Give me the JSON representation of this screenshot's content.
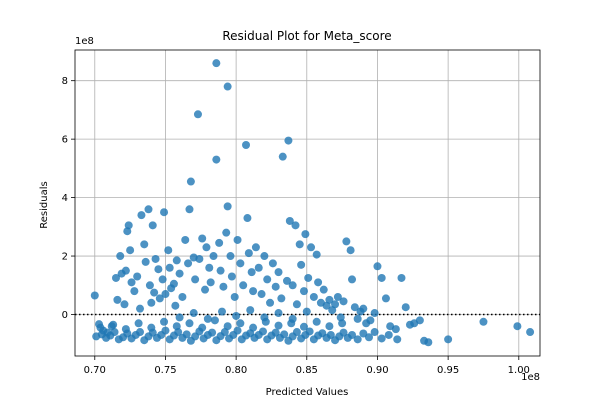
{
  "chart_data": {
    "type": "scatter",
    "title": "Residual Plot for Meta_score",
    "xlabel": "Predicted Values",
    "ylabel": "Residuals",
    "x_offset_label": "1e8",
    "y_offset_label": "1e8",
    "xlim": [
      0.686,
      1.015
    ],
    "ylim": [
      -1.42,
      9.05
    ],
    "x_ticks": [
      0.7,
      0.75,
      0.8,
      0.85,
      0.9,
      0.95,
      1.0
    ],
    "x_tick_labels": [
      "0.70",
      "0.75",
      "0.80",
      "0.85",
      "0.90",
      "0.95",
      "1.00"
    ],
    "y_ticks": [
      0,
      2,
      4,
      6,
      8
    ],
    "y_tick_labels": [
      "0",
      "2",
      "4",
      "6",
      "8"
    ],
    "grid": true,
    "reference_line": {
      "y": 0,
      "style": "dotted",
      "color": "#000000"
    },
    "series": [
      {
        "name": "residuals",
        "color": "#1f77b4",
        "points": [
          [
            0.7,
            0.65
          ],
          [
            0.703,
            -0.33
          ],
          [
            0.706,
            -0.55
          ],
          [
            0.709,
            -0.62
          ],
          [
            0.712,
            -0.4
          ],
          [
            0.715,
            1.25
          ],
          [
            0.716,
            0.5
          ],
          [
            0.718,
            2.0
          ],
          [
            0.719,
            1.4
          ],
          [
            0.721,
            0.35
          ],
          [
            0.722,
            1.5
          ],
          [
            0.723,
            2.85
          ],
          [
            0.724,
            3.05
          ],
          [
            0.725,
            2.2
          ],
          [
            0.726,
            1.1
          ],
          [
            0.728,
            0.8
          ],
          [
            0.73,
            1.3
          ],
          [
            0.732,
            0.2
          ],
          [
            0.733,
            3.4
          ],
          [
            0.735,
            2.4
          ],
          [
            0.736,
            1.8
          ],
          [
            0.738,
            3.6
          ],
          [
            0.739,
            1.0
          ],
          [
            0.74,
            0.4
          ],
          [
            0.741,
            3.05
          ],
          [
            0.742,
            0.75
          ],
          [
            0.743,
            1.9
          ],
          [
            0.745,
            1.55
          ],
          [
            0.746,
            0.55
          ],
          [
            0.748,
            1.2
          ],
          [
            0.749,
            3.5
          ],
          [
            0.75,
            0.7
          ],
          [
            0.752,
            2.2
          ],
          [
            0.753,
            1.6
          ],
          [
            0.754,
            0.9
          ],
          [
            0.756,
            1.05
          ],
          [
            0.757,
            0.3
          ],
          [
            0.758,
            1.85
          ],
          [
            0.76,
            1.4
          ],
          [
            0.762,
            0.6
          ],
          [
            0.764,
            2.55
          ],
          [
            0.766,
            1.75
          ],
          [
            0.767,
            3.6
          ],
          [
            0.768,
            4.55
          ],
          [
            0.77,
            1.95
          ],
          [
            0.771,
            1.2
          ],
          [
            0.773,
            6.85
          ],
          [
            0.774,
            1.9
          ],
          [
            0.776,
            2.6
          ],
          [
            0.778,
            0.85
          ],
          [
            0.779,
            2.3
          ],
          [
            0.781,
            1.6
          ],
          [
            0.782,
            1.1
          ],
          [
            0.784,
            2.0
          ],
          [
            0.786,
            8.6
          ],
          [
            0.786,
            5.3
          ],
          [
            0.788,
            2.45
          ],
          [
            0.789,
            1.5
          ],
          [
            0.791,
            0.95
          ],
          [
            0.793,
            2.8
          ],
          [
            0.794,
            7.8
          ],
          [
            0.794,
            3.7
          ],
          [
            0.796,
            2.0
          ],
          [
            0.797,
            1.3
          ],
          [
            0.799,
            0.6
          ],
          [
            0.801,
            2.55
          ],
          [
            0.803,
            1.75
          ],
          [
            0.805,
            1.0
          ],
          [
            0.807,
            5.8
          ],
          [
            0.808,
            3.3
          ],
          [
            0.809,
            2.1
          ],
          [
            0.811,
            1.45
          ],
          [
            0.812,
            0.8
          ],
          [
            0.814,
            2.3
          ],
          [
            0.816,
            1.6
          ],
          [
            0.818,
            0.7
          ],
          [
            0.82,
            2.0
          ],
          [
            0.822,
            1.2
          ],
          [
            0.824,
            0.4
          ],
          [
            0.826,
            1.75
          ],
          [
            0.828,
            0.95
          ],
          [
            0.83,
            1.45
          ],
          [
            0.832,
            0.55
          ],
          [
            0.833,
            5.4
          ],
          [
            0.836,
            1.15
          ],
          [
            0.837,
            5.95
          ],
          [
            0.838,
            3.2
          ],
          [
            0.84,
            1.0
          ],
          [
            0.842,
            3.05
          ],
          [
            0.843,
            0.35
          ],
          [
            0.845,
            2.4
          ],
          [
            0.846,
            1.7
          ],
          [
            0.848,
            0.8
          ],
          [
            0.849,
            2.75
          ],
          [
            0.851,
            1.25
          ],
          [
            0.853,
            2.3
          ],
          [
            0.855,
            0.6
          ],
          [
            0.857,
            2.05
          ],
          [
            0.858,
            1.1
          ],
          [
            0.86,
            0.4
          ],
          [
            0.862,
            0.85
          ],
          [
            0.864,
            0.3
          ],
          [
            0.866,
            0.5
          ],
          [
            0.868,
            0.15
          ],
          [
            0.87,
            0.35
          ],
          [
            0.872,
            0.6
          ],
          [
            0.874,
            -0.1
          ],
          [
            0.876,
            0.45
          ],
          [
            0.878,
            2.5
          ],
          [
            0.881,
            2.2
          ],
          [
            0.882,
            1.2
          ],
          [
            0.884,
            0.25
          ],
          [
            0.886,
            -0.15
          ],
          [
            0.888,
            0.1
          ],
          [
            0.89,
            0.2
          ],
          [
            0.892,
            -0.3
          ],
          [
            0.895,
            -0.2
          ],
          [
            0.898,
            0.05
          ],
          [
            0.9,
            1.65
          ],
          [
            0.903,
            1.25
          ],
          [
            0.906,
            0.55
          ],
          [
            0.909,
            -0.4
          ],
          [
            0.913,
            -0.5
          ],
          [
            0.917,
            1.25
          ],
          [
            0.92,
            0.25
          ],
          [
            0.923,
            -0.35
          ],
          [
            0.926,
            -0.3
          ],
          [
            0.93,
            -0.2
          ],
          [
            0.933,
            -0.9
          ],
          [
            0.936,
            -0.95
          ],
          [
            0.95,
            -0.85
          ],
          [
            0.975,
            -0.25
          ],
          [
            0.999,
            -0.4
          ],
          [
            1.008,
            -0.6
          ],
          [
            0.701,
            -0.75
          ],
          [
            0.705,
            -0.68
          ],
          [
            0.708,
            -0.8
          ],
          [
            0.711,
            -0.72
          ],
          [
            0.714,
            -0.6
          ],
          [
            0.717,
            -0.85
          ],
          [
            0.72,
            -0.78
          ],
          [
            0.723,
            -0.65
          ],
          [
            0.726,
            -0.82
          ],
          [
            0.729,
            -0.7
          ],
          [
            0.732,
            -0.6
          ],
          [
            0.735,
            -0.88
          ],
          [
            0.738,
            -0.75
          ],
          [
            0.741,
            -0.62
          ],
          [
            0.744,
            -0.8
          ],
          [
            0.747,
            -0.7
          ],
          [
            0.75,
            -0.55
          ],
          [
            0.753,
            -0.85
          ],
          [
            0.756,
            -0.72
          ],
          [
            0.759,
            -0.6
          ],
          [
            0.762,
            -0.8
          ],
          [
            0.765,
            -0.68
          ],
          [
            0.768,
            -0.9
          ],
          [
            0.771,
            -0.75
          ],
          [
            0.774,
            -0.58
          ],
          [
            0.777,
            -0.82
          ],
          [
            0.78,
            -0.7
          ],
          [
            0.783,
            -0.62
          ],
          [
            0.786,
            -0.88
          ],
          [
            0.789,
            -0.74
          ],
          [
            0.792,
            -0.6
          ],
          [
            0.795,
            -0.82
          ],
          [
            0.798,
            -0.7
          ],
          [
            0.801,
            -0.55
          ],
          [
            0.804,
            -0.85
          ],
          [
            0.807,
            -0.72
          ],
          [
            0.81,
            -0.64
          ],
          [
            0.813,
            -0.8
          ],
          [
            0.816,
            -0.7
          ],
          [
            0.819,
            -0.58
          ],
          [
            0.822,
            -0.85
          ],
          [
            0.825,
            -0.72
          ],
          [
            0.828,
            -0.62
          ],
          [
            0.831,
            -0.8
          ],
          [
            0.834,
            -0.68
          ],
          [
            0.837,
            -0.9
          ],
          [
            0.84,
            -0.75
          ],
          [
            0.843,
            -0.6
          ],
          [
            0.846,
            -0.82
          ],
          [
            0.849,
            -0.7
          ],
          [
            0.852,
            -0.58
          ],
          [
            0.855,
            -0.85
          ],
          [
            0.858,
            -0.72
          ],
          [
            0.861,
            -0.64
          ],
          [
            0.864,
            -0.8
          ],
          [
            0.867,
            -0.7
          ],
          [
            0.87,
            -0.88
          ],
          [
            0.873,
            -0.75
          ],
          [
            0.876,
            -0.62
          ],
          [
            0.879,
            -0.8
          ],
          [
            0.882,
            -0.7
          ],
          [
            0.886,
            -0.85
          ],
          [
            0.89,
            -0.65
          ],
          [
            0.894,
            -0.78
          ],
          [
            0.898,
            -0.6
          ],
          [
            0.903,
            -0.82
          ],
          [
            0.908,
            -0.7
          ],
          [
            0.914,
            -0.85
          ],
          [
            0.704,
            -0.45
          ],
          [
            0.713,
            -0.35
          ],
          [
            0.722,
            -0.5
          ],
          [
            0.731,
            -0.3
          ],
          [
            0.74,
            -0.45
          ],
          [
            0.749,
            -0.25
          ],
          [
            0.758,
            -0.4
          ],
          [
            0.767,
            -0.3
          ],
          [
            0.776,
            -0.45
          ],
          [
            0.785,
            -0.2
          ],
          [
            0.794,
            -0.4
          ],
          [
            0.803,
            -0.3
          ],
          [
            0.812,
            -0.45
          ],
          [
            0.821,
            -0.25
          ],
          [
            0.83,
            -0.38
          ],
          [
            0.839,
            -0.3
          ],
          [
            0.848,
            -0.42
          ],
          [
            0.857,
            -0.25
          ],
          [
            0.866,
            -0.4
          ],
          [
            0.875,
            -0.3
          ],
          [
            0.76,
            -0.1
          ],
          [
            0.77,
            0.05
          ],
          [
            0.78,
            -0.15
          ],
          [
            0.79,
            0.1
          ],
          [
            0.8,
            -0.05
          ],
          [
            0.81,
            0.15
          ],
          [
            0.82,
            -0.1
          ],
          [
            0.83,
            0.05
          ],
          [
            0.84,
            -0.15
          ],
          [
            0.85,
            0.1
          ]
        ]
      }
    ]
  }
}
